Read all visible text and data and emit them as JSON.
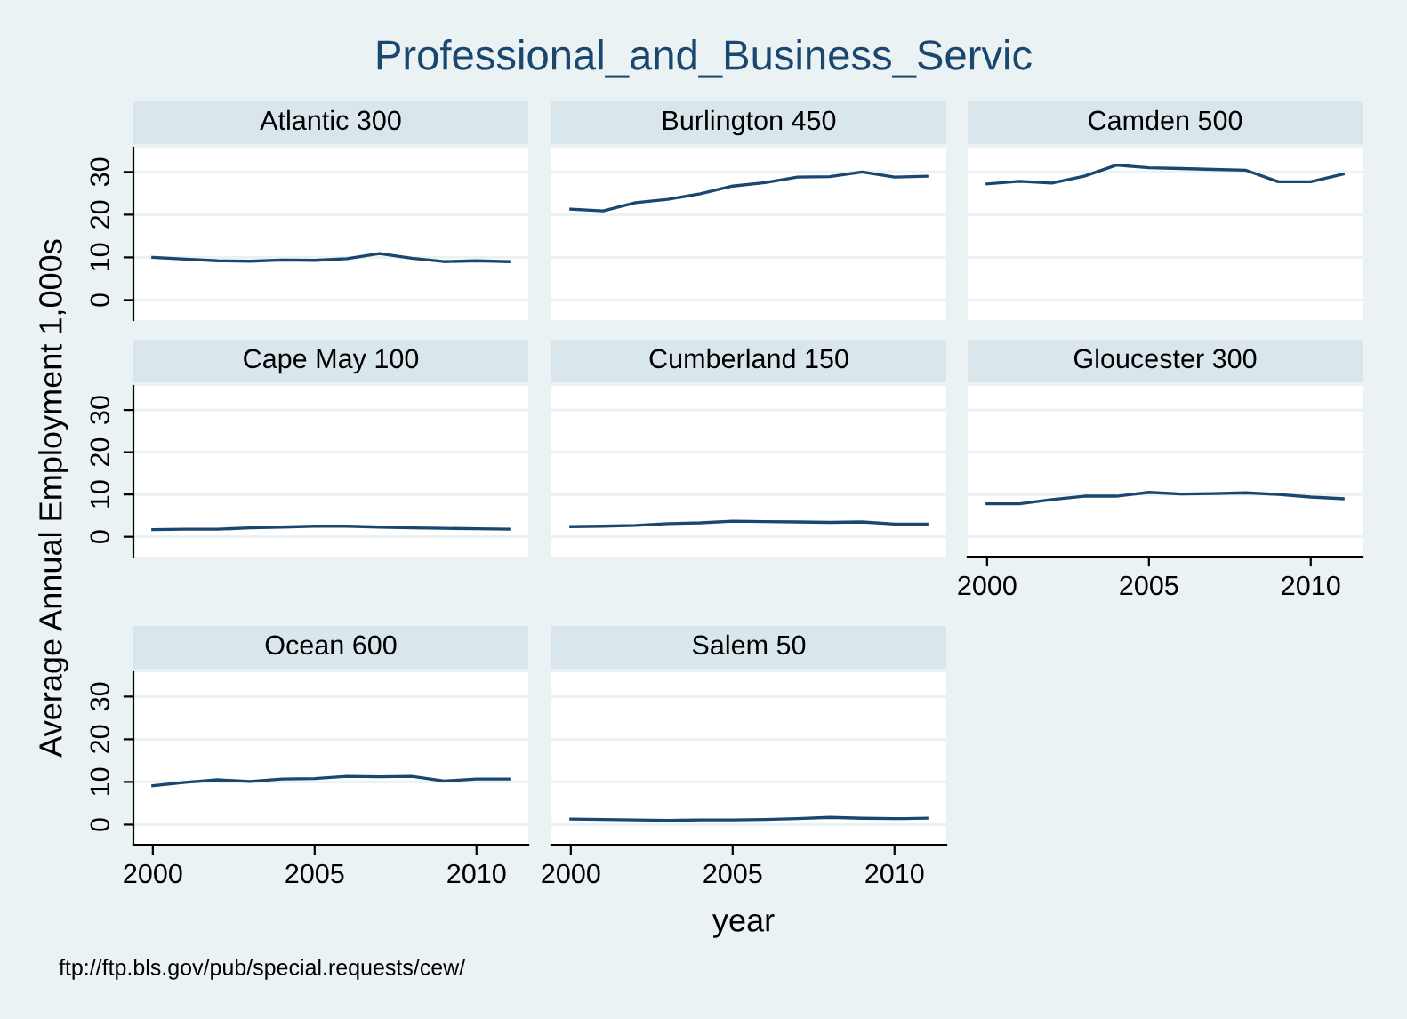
{
  "chart_data": [
    {
      "type": "other",
      "title": "Professional_and_Business_Servic",
      "ylabel": "Average Annual Employment 1,000s",
      "xlabel": "year",
      "annotations": [
        "ftp://ftp.bls.gov/pub/special.requests/cew/"
      ]
    },
    {
      "type": "line",
      "title": "Atlantic 300",
      "x": [
        2000,
        2001,
        2002,
        2003,
        2004,
        2005,
        2006,
        2007,
        2008,
        2009,
        2010,
        2011
      ],
      "series": [
        {
          "color": "#1a476f",
          "values": [
            10,
            9.6,
            9.2,
            9.1,
            9.4,
            9.3,
            9.7,
            10.9,
            9.8,
            9.0,
            9.2,
            9.0
          ]
        }
      ],
      "xlim": [
        1999.4,
        2011.6
      ],
      "ylim": [
        -4.7,
        35.7
      ],
      "xticks": [
        2000,
        2005,
        2010
      ],
      "yticks": [
        0,
        10,
        20,
        30
      ],
      "grid": "y",
      "tick_labels": "y",
      "line_style": "solid"
    },
    {
      "type": "line",
      "title": "Burlington 450",
      "x": [
        2000,
        2001,
        2002,
        2003,
        2004,
        2005,
        2006,
        2007,
        2008,
        2009,
        2010,
        2011
      ],
      "series": [
        {
          "color": "#1a476f",
          "values": [
            21.3,
            20.9,
            22.8,
            23.6,
            24.9,
            26.7,
            27.5,
            28.8,
            28.9,
            30.0,
            28.8,
            29.0
          ]
        }
      ],
      "xlim": [
        1999.4,
        2011.6
      ],
      "ylim": [
        -4.7,
        35.7
      ],
      "xticks": [
        2000,
        2005,
        2010
      ],
      "yticks": [
        0,
        10,
        20,
        30
      ],
      "grid": "y",
      "tick_labels": false,
      "line_style": "solid"
    },
    {
      "type": "line",
      "title": "Camden 500",
      "x": [
        2000,
        2001,
        2002,
        2003,
        2004,
        2005,
        2006,
        2007,
        2008,
        2009,
        2010,
        2011
      ],
      "series": [
        {
          "color": "#1a476f",
          "values": [
            27.2,
            27.8,
            27.4,
            29.0,
            31.6,
            31.0,
            30.8,
            30.6,
            30.4,
            27.7,
            27.7,
            29.5
          ]
        }
      ],
      "xlim": [
        1999.4,
        2011.6
      ],
      "ylim": [
        -4.7,
        35.7
      ],
      "xticks": [
        2000,
        2005,
        2010
      ],
      "yticks": [
        0,
        10,
        20,
        30
      ],
      "grid": "y",
      "tick_labels": false,
      "line_style": "solid"
    },
    {
      "type": "line",
      "title": "Cape May 100",
      "x": [
        2000,
        2001,
        2002,
        2003,
        2004,
        2005,
        2006,
        2007,
        2008,
        2009,
        2010,
        2011
      ],
      "series": [
        {
          "color": "#1a476f",
          "values": [
            1.7,
            1.8,
            1.8,
            2.1,
            2.3,
            2.5,
            2.5,
            2.3,
            2.1,
            2.0,
            1.9,
            1.8
          ]
        }
      ],
      "xlim": [
        1999.4,
        2011.6
      ],
      "ylim": [
        -4.7,
        35.7
      ],
      "xticks": [
        2000,
        2005,
        2010
      ],
      "yticks": [
        0,
        10,
        20,
        30
      ],
      "grid": "y",
      "tick_labels": "y",
      "line_style": "solid"
    },
    {
      "type": "line",
      "title": "Cumberland 150",
      "x": [
        2000,
        2001,
        2002,
        2003,
        2004,
        2005,
        2006,
        2007,
        2008,
        2009,
        2010,
        2011
      ],
      "series": [
        {
          "color": "#1a476f",
          "values": [
            2.4,
            2.5,
            2.7,
            3.1,
            3.3,
            3.7,
            3.6,
            3.5,
            3.4,
            3.5,
            3.0,
            3.0
          ]
        }
      ],
      "xlim": [
        1999.4,
        2011.6
      ],
      "ylim": [
        -4.7,
        35.7
      ],
      "xticks": [
        2000,
        2005,
        2010
      ],
      "yticks": [
        0,
        10,
        20,
        30
      ],
      "grid": "y",
      "tick_labels": false,
      "line_style": "solid"
    },
    {
      "type": "line",
      "title": "Gloucester 300",
      "x": [
        2000,
        2001,
        2002,
        2003,
        2004,
        2005,
        2006,
        2007,
        2008,
        2009,
        2010,
        2011
      ],
      "series": [
        {
          "color": "#1a476f",
          "values": [
            7.8,
            7.8,
            8.8,
            9.6,
            9.6,
            10.5,
            10.1,
            10.2,
            10.4,
            10.0,
            9.4,
            9.0
          ]
        }
      ],
      "xlim": [
        1999.4,
        2011.6
      ],
      "ylim": [
        -4.7,
        35.7
      ],
      "xticks": [
        2000,
        2005,
        2010
      ],
      "yticks": [
        0,
        10,
        20,
        30
      ],
      "grid": "y",
      "tick_labels": "x",
      "line_style": "solid"
    },
    {
      "type": "line",
      "title": "Ocean 600",
      "x": [
        2000,
        2001,
        2002,
        2003,
        2004,
        2005,
        2006,
        2007,
        2008,
        2009,
        2010,
        2011
      ],
      "series": [
        {
          "color": "#1a476f",
          "values": [
            9.1,
            9.9,
            10.5,
            10.1,
            10.7,
            10.8,
            11.3,
            11.2,
            11.3,
            10.2,
            10.7,
            10.7
          ]
        }
      ],
      "xlim": [
        1999.4,
        2011.6
      ],
      "ylim": [
        -4.7,
        35.7
      ],
      "xticks": [
        2000,
        2005,
        2010
      ],
      "yticks": [
        0,
        10,
        20,
        30
      ],
      "grid": "y",
      "line_style": "solid"
    },
    {
      "type": "line",
      "title": "Salem 50",
      "x": [
        2000,
        2001,
        2002,
        2003,
        2004,
        2005,
        2006,
        2007,
        2008,
        2009,
        2010,
        2011
      ],
      "series": [
        {
          "color": "#1a476f",
          "values": [
            1.3,
            1.2,
            1.1,
            1.0,
            1.1,
            1.1,
            1.2,
            1.4,
            1.7,
            1.5,
            1.4,
            1.5
          ]
        }
      ],
      "xlim": [
        1999.4,
        2011.6
      ],
      "ylim": [
        -4.7,
        35.7
      ],
      "xticks": [
        2000,
        2005,
        2010
      ],
      "yticks": [
        0,
        10,
        20,
        30
      ],
      "grid": "y",
      "tick_labels": "x",
      "line_style": "solid"
    }
  ]
}
